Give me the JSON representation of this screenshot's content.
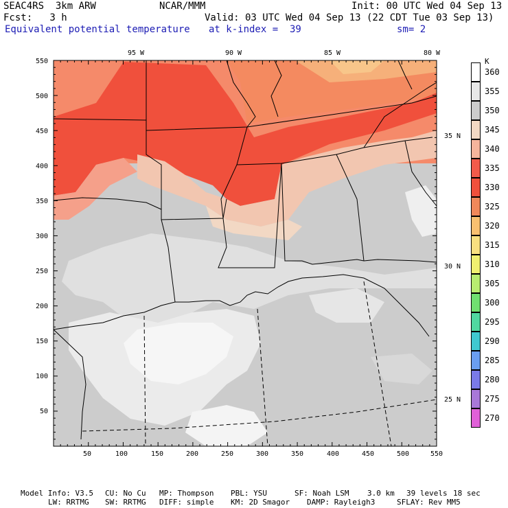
{
  "header": {
    "model": "SEAC4RS  3km ARW",
    "center": "NCAR/MMM",
    "init": "Init: 00 UTC Wed 04 Sep 13",
    "fcst": "Fcst:   3 h",
    "valid": "Valid: 03 UTC Wed 04 Sep 13 (22 CDT Tue 03 Sep 13)",
    "field": "Equivalent potential temperature",
    "level": "at k-index =  39",
    "smooth": "sm= 2"
  },
  "axes": {
    "x_ticks": [
      "50",
      "100",
      "150",
      "200",
      "250",
      "300",
      "350",
      "400",
      "450",
      "500",
      "550"
    ],
    "y_ticks": [
      "550",
      "500",
      "450",
      "400",
      "350",
      "300",
      "250",
      "200",
      "150",
      "100",
      "50"
    ],
    "lon_labels": [
      "95 W",
      "90 W",
      "85 W",
      "80 W"
    ],
    "lat_labels": [
      "35 N",
      "30 N",
      "25 N"
    ]
  },
  "colorbar": {
    "unit": "K",
    "levels": [
      "360",
      "355",
      "350",
      "345",
      "340",
      "335",
      "330",
      "325",
      "320",
      "315",
      "310",
      "305",
      "300",
      "295",
      "290",
      "285",
      "280",
      "275",
      "270"
    ],
    "colors": [
      "#ffffff",
      "#e8e8e8",
      "#cccccc",
      "#f2d8c4",
      "#f5b49c",
      "#f25a4a",
      "#f0503c",
      "#f0885a",
      "#f8c070",
      "#f8e080",
      "#f0f070",
      "#b8ec70",
      "#70e070",
      "#50d8a0",
      "#40c8d0",
      "#6a9ef0",
      "#7a7ae8",
      "#a878d8",
      "#e060d8"
    ]
  },
  "footer": {
    "line1a": "Model Info: V3.5",
    "line1b": "CU: No Cu",
    "line1c": "MP: Thompson",
    "line1d": "PBL: YSU",
    "line1e": "SF: Noah LSM",
    "line1f": "3.0 km",
    "line1g": "39 levels",
    "line1h": "18 sec",
    "line2a": "LW: RRTMG",
    "line2b": "SW: RRTMG",
    "line2c": "DIFF: simple",
    "line2d": "KM: 2D Smagor",
    "line2e": "DAMP: Rayleigh3",
    "line2f": "SFLAY: Rev MM5"
  }
}
